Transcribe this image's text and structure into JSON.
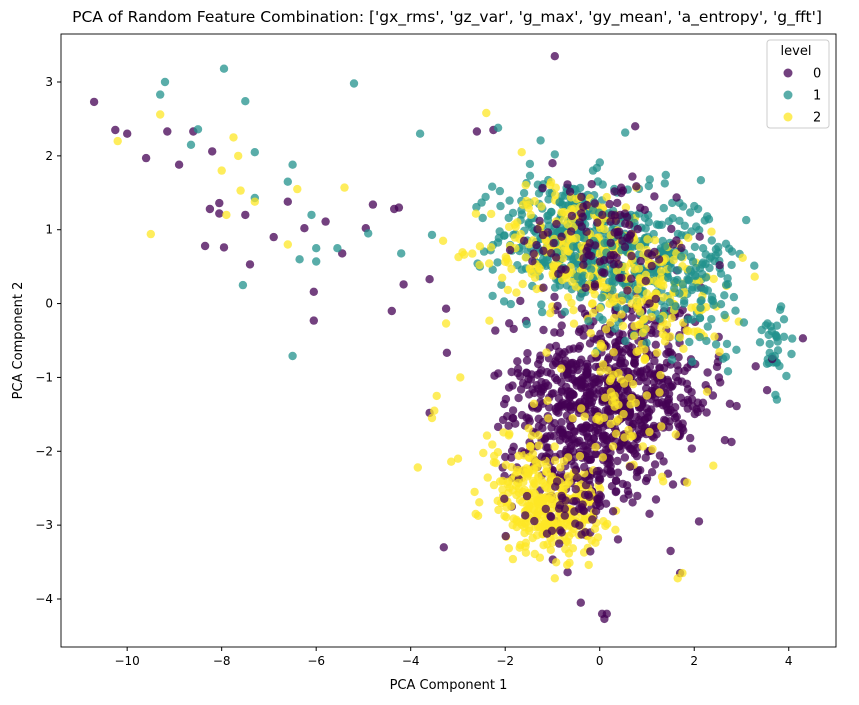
{
  "chart_data": {
    "type": "scatter",
    "title": "PCA of Random Feature Combination: ['gx_rms', 'gz_var', 'g_max', 'gy_mean', 'a_entropy', 'g_fft']",
    "xlabel": "PCA Component 1",
    "ylabel": "PCA Component 2",
    "xlim": [
      -11.4,
      5.0
    ],
    "ylim": [
      -4.65,
      3.65
    ],
    "xticks": [
      -10,
      -8,
      -6,
      -4,
      -2,
      0,
      2,
      4
    ],
    "yticks": [
      -4,
      -3,
      -2,
      -1,
      0,
      1,
      2,
      3
    ],
    "grid": false,
    "legend": {
      "title": "level",
      "position": "top-right"
    },
    "point_alpha": 0.75,
    "series": [
      {
        "name": "0",
        "color": "#440154",
        "points": [
          [
            -10.7,
            2.73
          ],
          [
            -10.25,
            2.35
          ],
          [
            -10.0,
            2.3
          ],
          [
            -9.6,
            1.97
          ],
          [
            -9.15,
            2.33
          ],
          [
            -8.9,
            1.88
          ],
          [
            -8.6,
            2.33
          ],
          [
            -8.2,
            2.06
          ],
          [
            -8.05,
            1.36
          ],
          [
            -8.05,
            1.22
          ],
          [
            -8.25,
            1.28
          ],
          [
            -8.35,
            0.78
          ],
          [
            -7.95,
            0.76
          ],
          [
            -7.5,
            1.2
          ],
          [
            -7.4,
            0.53
          ],
          [
            -6.9,
            0.9
          ],
          [
            -6.6,
            1.38
          ],
          [
            -6.25,
            1.02
          ],
          [
            -6.05,
            0.16
          ],
          [
            -6.05,
            -0.23
          ],
          [
            -5.8,
            1.11
          ],
          [
            -5.45,
            0.68
          ],
          [
            -4.95,
            1.02
          ],
          [
            -4.8,
            1.34
          ],
          [
            -4.35,
            1.28
          ],
          [
            -4.25,
            1.3
          ],
          [
            -4.15,
            0.26
          ],
          [
            -4.4,
            -0.1
          ],
          [
            -3.6,
            0.33
          ],
          [
            -3.25,
            -0.07
          ],
          [
            -3.6,
            -1.48
          ],
          [
            -3.3,
            -3.3
          ],
          [
            -2.6,
            2.33
          ],
          [
            -2.25,
            2.35
          ],
          [
            -0.95,
            3.35
          ],
          [
            0.75,
            2.4
          ],
          [
            -1.0,
            1.9
          ],
          [
            -1.6,
            0.85
          ],
          [
            -0.4,
            -4.05
          ],
          [
            0.05,
            -4.2
          ],
          [
            0.15,
            -4.2
          ],
          [
            0.1,
            -4.27
          ],
          [
            1.7,
            -3.65
          ],
          [
            1.5,
            -3.35
          ],
          [
            2.1,
            -2.95
          ],
          [
            2.65,
            -1.85
          ],
          [
            3.3,
            -0.85
          ],
          [
            3.65,
            -0.75
          ],
          [
            4.3,
            -0.47
          ]
        ],
        "clusters": [
          {
            "center": [
              0.4,
              -0.95
            ],
            "spread": [
              1.2,
              0.8
            ],
            "count": 380
          },
          {
            "center": [
              -0.3,
              -1.9
            ],
            "spread": [
              1.0,
              0.6
            ],
            "count": 250
          },
          {
            "center": [
              0.9,
              -1.35
            ],
            "spread": [
              1.1,
              0.55
            ],
            "count": 160
          },
          {
            "center": [
              -1.0,
              -1.2
            ],
            "spread": [
              0.8,
              0.6
            ],
            "count": 90
          },
          {
            "center": [
              0.2,
              0.9
            ],
            "spread": [
              1.2,
              0.6
            ],
            "count": 110
          },
          {
            "center": [
              -0.4,
              -2.7
            ],
            "spread": [
              0.7,
              0.35
            ],
            "count": 70
          }
        ]
      },
      {
        "name": "1",
        "color": "#21918c",
        "points": [
          [
            -9.3,
            2.83
          ],
          [
            -9.2,
            3.0
          ],
          [
            -8.5,
            2.36
          ],
          [
            -8.65,
            2.15
          ],
          [
            -7.95,
            3.18
          ],
          [
            -7.5,
            2.74
          ],
          [
            -7.55,
            0.25
          ],
          [
            -7.3,
            1.43
          ],
          [
            -7.3,
            2.05
          ],
          [
            -6.6,
            1.65
          ],
          [
            -6.5,
            1.88
          ],
          [
            -6.5,
            -0.71
          ],
          [
            -6.35,
            0.6
          ],
          [
            -6.1,
            1.2
          ],
          [
            -6.0,
            0.75
          ],
          [
            -6.0,
            0.57
          ],
          [
            -5.55,
            0.75
          ],
          [
            -5.2,
            2.98
          ],
          [
            -4.9,
            0.95
          ],
          [
            -4.2,
            0.68
          ],
          [
            -3.8,
            2.3
          ],
          [
            -3.55,
            0.93
          ],
          [
            -2.15,
            2.38
          ],
          [
            -1.25,
            2.21
          ],
          [
            -0.95,
            2.02
          ],
          [
            -0.85,
            1.37
          ],
          [
            3.1,
            1.13
          ],
          [
            3.55,
            -0.27
          ],
          [
            3.65,
            -0.72
          ],
          [
            3.75,
            -0.3
          ],
          [
            3.9,
            -0.45
          ],
          [
            3.95,
            -0.98
          ],
          [
            3.75,
            -1.3
          ]
        ],
        "clusters": [
          {
            "center": [
              -0.7,
              0.9
            ],
            "spread": [
              1.0,
              0.55
            ],
            "count": 330
          },
          {
            "center": [
              0.9,
              0.55
            ],
            "spread": [
              1.1,
              0.6
            ],
            "count": 240
          },
          {
            "center": [
              2.2,
              0.25
            ],
            "spread": [
              0.6,
              0.6
            ],
            "count": 80
          },
          {
            "center": [
              3.7,
              -0.6
            ],
            "spread": [
              0.3,
              0.35
            ],
            "count": 28
          }
        ]
      },
      {
        "name": "2",
        "color": "#fde725",
        "points": [
          [
            -10.2,
            2.2
          ],
          [
            -9.5,
            0.94
          ],
          [
            -9.3,
            2.56
          ],
          [
            -8.0,
            1.8
          ],
          [
            -7.9,
            1.2
          ],
          [
            -7.75,
            2.25
          ],
          [
            -7.65,
            2.0
          ],
          [
            -7.6,
            1.53
          ],
          [
            -7.3,
            1.38
          ],
          [
            -6.6,
            0.8
          ],
          [
            -6.4,
            1.55
          ],
          [
            -5.4,
            1.57
          ],
          [
            -3.85,
            -2.22
          ],
          [
            -3.5,
            -1.45
          ],
          [
            -3.45,
            -1.25
          ],
          [
            -3.55,
            -1.55
          ],
          [
            -3.25,
            -0.27
          ],
          [
            -3.0,
            -2.1
          ],
          [
            -2.95,
            -1.0
          ],
          [
            -2.4,
            2.58
          ],
          [
            -1.65,
            2.05
          ],
          [
            -0.95,
            -3.72
          ],
          [
            1.65,
            -3.72
          ],
          [
            1.75,
            -3.65
          ],
          [
            -0.1,
            -3.05
          ]
        ],
        "clusters": [
          {
            "center": [
              -1.0,
              -2.8
            ],
            "spread": [
              0.7,
              0.4
            ],
            "count": 260
          },
          {
            "center": [
              -1.7,
              -2.3
            ],
            "spread": [
              0.6,
              0.45
            ],
            "count": 80
          },
          {
            "center": [
              -0.5,
              0.75
            ],
            "spread": [
              1.2,
              0.55
            ],
            "count": 240
          },
          {
            "center": [
              1.2,
              0.1
            ],
            "spread": [
              1.0,
              0.6
            ],
            "count": 150
          },
          {
            "center": [
              0.5,
              -1.5
            ],
            "spread": [
              1.0,
              0.7
            ],
            "count": 60
          }
        ]
      }
    ],
    "draw_order": [
      {
        "series": 0,
        "cluster": 0
      },
      {
        "series": 0,
        "cluster": 1
      },
      {
        "series": 1,
        "cluster": 0
      },
      {
        "series": 2,
        "cluster": 2
      },
      {
        "series": 0,
        "cluster": 2
      },
      {
        "series": 1,
        "cluster": 1
      },
      {
        "series": 2,
        "cluster": 0
      },
      {
        "series": 0,
        "cluster": 3
      },
      {
        "series": 2,
        "cluster": 3
      },
      {
        "series": 1,
        "cluster": 2
      },
      {
        "series": 0,
        "cluster": 4
      },
      {
        "series": 2,
        "cluster": 1
      },
      {
        "series": 2,
        "cluster": 4
      },
      {
        "series": 0,
        "cluster": 5
      },
      {
        "series": 1,
        "cluster": 3
      }
    ]
  }
}
